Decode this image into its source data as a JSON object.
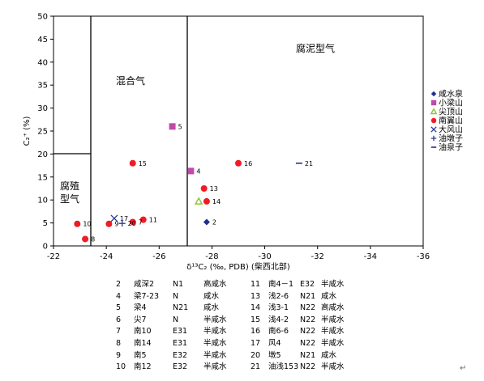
{
  "chart_data": {
    "type": "scatter",
    "title": "",
    "xlabel": "δ¹³C₂ (‰, PDB) (柴西北部)",
    "ylabel": "C₂⁺ (%)",
    "xlim": [
      -22,
      -36
    ],
    "ylim": [
      0,
      50
    ],
    "x_ticks": [
      "-22",
      "-24",
      "-26",
      "-28",
      "-30",
      "-32",
      "-34",
      "-36"
    ],
    "y_ticks": [
      "0",
      "5",
      "10",
      "15",
      "20",
      "25",
      "30",
      "35",
      "40",
      "45",
      "50"
    ],
    "regions": [
      {
        "name": "腐殖型气",
        "x_range": [
          -22,
          -23.4
        ],
        "y_range": [
          0,
          20
        ]
      },
      {
        "name": "混合气",
        "x_range": [
          -23.4,
          -27
        ]
      },
      {
        "name": "腐泥型气",
        "x_range": [
          -27,
          -36
        ]
      }
    ],
    "region_labels": [
      "腐殖",
      "型气",
      "混合气",
      "腐泥型气"
    ],
    "series": [
      {
        "name": "咸水泉",
        "marker": "diamond",
        "color": "#1f2f8f",
        "points": [
          {
            "id": "2",
            "x": -27.8,
            "y": 5.2
          }
        ]
      },
      {
        "name": "小梁山",
        "marker": "square",
        "color": "#c04aa8",
        "points": [
          {
            "id": "5",
            "x": -26.5,
            "y": 26.0
          },
          {
            "id": "4",
            "x": -27.2,
            "y": 16.3
          }
        ]
      },
      {
        "name": "尖顶山",
        "marker": "triangle",
        "color": "#8cc63f",
        "points": [
          {
            "id": "6",
            "x": -27.5,
            "y": 9.7
          }
        ]
      },
      {
        "name": "南翼山",
        "marker": "circle",
        "color": "#ee1c25",
        "points": [
          {
            "id": "16",
            "x": -29.0,
            "y": 18.0
          },
          {
            "id": "15",
            "x": -25.0,
            "y": 18.0
          },
          {
            "id": "13",
            "x": -27.7,
            "y": 12.5
          },
          {
            "id": "14",
            "x": -27.8,
            "y": 9.7
          },
          {
            "id": "11",
            "x": -25.4,
            "y": 5.7
          },
          {
            "id": "7",
            "x": -25.0,
            "y": 5.2
          },
          {
            "id": "9",
            "x": -24.1,
            "y": 4.8
          },
          {
            "id": "10",
            "x": -22.9,
            "y": 4.8
          },
          {
            "id": "8",
            "x": -23.2,
            "y": 1.5
          }
        ]
      },
      {
        "name": "大风山",
        "marker": "x",
        "color": "#2b3990",
        "points": [
          {
            "id": "17",
            "x": -24.3,
            "y": 6.0
          }
        ]
      },
      {
        "name": "油墩子",
        "marker": "plus",
        "color": "#2b3990",
        "points": [
          {
            "id": "20",
            "x": -24.6,
            "y": 4.9
          }
        ]
      },
      {
        "name": "油泉子",
        "marker": "dash",
        "color": "#1f2f8f",
        "points": [
          {
            "id": "21",
            "x": -31.3,
            "y": 18.0
          }
        ]
      }
    ]
  },
  "sample_table": [
    [
      "2",
      "咸深2",
      "N1",
      "高咸水",
      "11",
      "南4－1",
      "E32",
      "半咸水"
    ],
    [
      "4",
      "梁7-23",
      "N",
      "咸水",
      "13",
      "浅2-6",
      "N21",
      "咸水"
    ],
    [
      "5",
      "梁4",
      "N21",
      "咸水",
      "14",
      "浅3-1",
      "N22",
      "高咸水"
    ],
    [
      "6",
      "尖7",
      "N",
      "半咸水",
      "15",
      "浅4-2",
      "N22",
      "半咸水"
    ],
    [
      "7",
      "南10",
      "E31",
      "半咸水",
      "16",
      "南6-6",
      "N22",
      "半咸水"
    ],
    [
      "8",
      "南14",
      "E31",
      "半咸水",
      "17",
      "风4",
      "N22",
      "半咸水"
    ],
    [
      "9",
      "南5",
      "E32",
      "半咸水",
      "20",
      "墩5",
      "N21",
      "咸水"
    ],
    [
      "10",
      "南12",
      "E32",
      "半咸水",
      "21",
      "油浅153",
      "N22",
      "半咸水"
    ]
  ],
  "return_mark": "↵"
}
